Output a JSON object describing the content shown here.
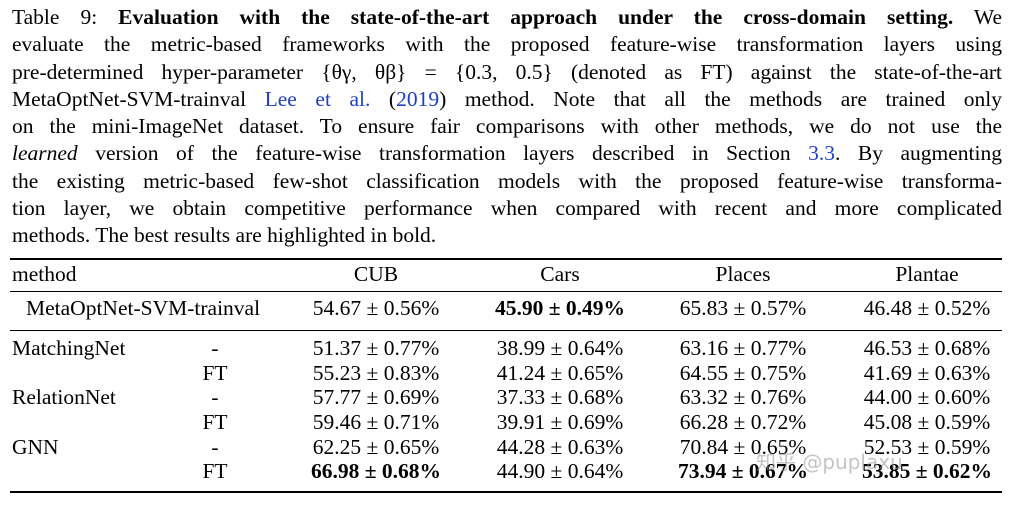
{
  "caption": {
    "label": "Table 9:",
    "title": "Evaluation with the state-of-the-art approach under the cross-domain setting.",
    "lines": [
      [
        "We"
      ],
      [
        "evaluate the metric-based frameworks with the proposed feature-wise transformation layers using"
      ],
      [
        "pre-determined hyper-parameter {θγ, θβ} = {0.3, 0.5} (denoted as FT) against the state-of-the-art"
      ],
      [
        "MetaOptNet-SVM-trainval ",
        "Lee et al.",
        " (",
        "2019",
        ") method.  Note that all the methods are trained only"
      ],
      [
        "on the mini-ImageNet dataset. To ensure fair comparisons with other methods, we do not use the"
      ],
      [
        "learned",
        " version of the feature-wise transformation layers described in Section ",
        "3.3",
        ". By augmenting"
      ],
      [
        "the existing metric-based few-shot classification models with the proposed feature-wise transforma-"
      ],
      [
        "tion layer, we obtain competitive performance when compared with recent and more complicated"
      ],
      [
        "methods. The best results are highlighted in bold."
      ]
    ]
  },
  "table": {
    "headers": [
      "method",
      "CUB",
      "Cars",
      "Places",
      "Plantae"
    ],
    "rows": [
      {
        "method": "MetaOptNet-SVM-trainval",
        "variant": "",
        "values": [
          "54.67 ± 0.56%",
          "45.90 ± 0.49%",
          "65.83 ± 0.57%",
          "46.48 ± 0.52%"
        ],
        "bold": [
          false,
          true,
          false,
          false
        ]
      },
      {
        "method": "MatchingNet",
        "variant": "-",
        "values": [
          "51.37 ± 0.77%",
          "38.99 ± 0.64%",
          "63.16 ± 0.77%",
          "46.53 ± 0.68%"
        ],
        "bold": [
          false,
          false,
          false,
          false
        ]
      },
      {
        "method": "",
        "variant": "FT",
        "values": [
          "55.23 ± 0.83%",
          "41.24 ± 0.65%",
          "64.55 ± 0.75%",
          "41.69 ± 0.63%"
        ],
        "bold": [
          false,
          false,
          false,
          false
        ]
      },
      {
        "method": "RelationNet",
        "variant": "-",
        "values": [
          "57.77 ± 0.69%",
          "37.33 ± 0.68%",
          "63.32 ± 0.76%",
          "44.00 ± 0.60%"
        ],
        "bold": [
          false,
          false,
          false,
          false
        ]
      },
      {
        "method": "",
        "variant": "FT",
        "values": [
          "59.46 ± 0.71%",
          "39.91 ± 0.69%",
          "66.28 ± 0.72%",
          "45.08 ± 0.59%"
        ],
        "bold": [
          false,
          false,
          false,
          false
        ]
      },
      {
        "method": "GNN",
        "variant": "-",
        "values": [
          "62.25 ± 0.65%",
          "44.28 ± 0.63%",
          "70.84 ± 0.65%",
          "52.53 ± 0.59%"
        ],
        "bold": [
          false,
          false,
          false,
          false
        ]
      },
      {
        "method": "",
        "variant": "FT",
        "values": [
          "66.98 ± 0.68%",
          "44.90 ± 0.64%",
          "73.94 ± 0.67%",
          "53.85 ± 0.62%"
        ],
        "bold": [
          true,
          false,
          true,
          true
        ]
      }
    ]
  },
  "watermark": "知乎 @puplaxu"
}
